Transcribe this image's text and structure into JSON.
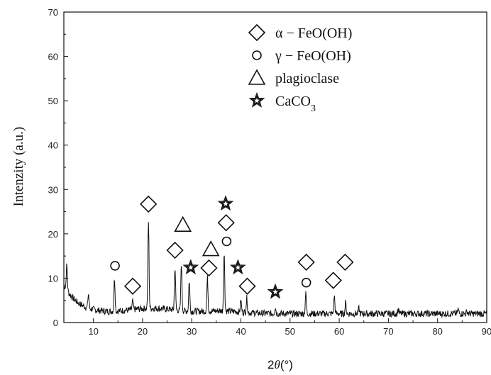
{
  "chart_data": {
    "type": "line",
    "ylabel": "Intenzity (a.u.)",
    "xlabel_theta": "θ",
    "xlabel_prefix": "2",
    "xlabel_unit": "(°)",
    "xlim": [
      4,
      90
    ],
    "ylim": [
      0,
      70
    ],
    "xticks": [
      10,
      20,
      30,
      40,
      50,
      60,
      70,
      80,
      90
    ],
    "yticks": [
      0,
      10,
      20,
      30,
      40,
      50,
      60,
      70
    ],
    "legend": {
      "placement": "top-right",
      "entries": [
        {
          "symbol": "diamond",
          "label": "α − FeO(OH)"
        },
        {
          "symbol": "circle",
          "label": "γ − FeO(OH)"
        },
        {
          "symbol": "triangle",
          "label": "plagioclase"
        },
        {
          "symbol": "star",
          "label": "CaCO",
          "sub": "3"
        }
      ]
    },
    "peaks": [
      {
        "x": 4.6,
        "y": 13
      },
      {
        "x": 9.0,
        "y": 6.5
      },
      {
        "x": 14.3,
        "y": 10
      },
      {
        "x": 18.0,
        "y": 4.8
      },
      {
        "x": 21.2,
        "y": 22.8
      },
      {
        "x": 26.6,
        "y": 12.5
      },
      {
        "x": 27.9,
        "y": 13.5
      },
      {
        "x": 29.5,
        "y": 9.5
      },
      {
        "x": 33.2,
        "y": 10
      },
      {
        "x": 36.6,
        "y": 15.5
      },
      {
        "x": 40.0,
        "y": 5
      },
      {
        "x": 41.2,
        "y": 5.5
      },
      {
        "x": 47.0,
        "y": 3.5
      },
      {
        "x": 53.2,
        "y": 6.5
      },
      {
        "x": 59.0,
        "y": 6
      },
      {
        "x": 61.3,
        "y": 4.5
      },
      {
        "x": 64.0,
        "y": 3.2
      },
      {
        "x": 72.0,
        "y": 3
      },
      {
        "x": 84.2,
        "y": 3
      },
      {
        "x": 86.0,
        "y": 2.6
      }
    ],
    "annotations": [
      {
        "symbol": "diamond",
        "x": 21.2,
        "y": 26.7
      },
      {
        "symbol": "diamond",
        "x": 18.0,
        "y": 8.2
      },
      {
        "symbol": "diamond",
        "x": 26.6,
        "y": 16.3
      },
      {
        "symbol": "diamond",
        "x": 33.5,
        "y": 12.3
      },
      {
        "symbol": "diamond",
        "x": 37.0,
        "y": 22.5
      },
      {
        "symbol": "diamond",
        "x": 41.3,
        "y": 8.2
      },
      {
        "symbol": "diamond",
        "x": 53.3,
        "y": 13.6
      },
      {
        "symbol": "diamond",
        "x": 58.8,
        "y": 9.5
      },
      {
        "symbol": "diamond",
        "x": 61.2,
        "y": 13.6
      },
      {
        "symbol": "circle",
        "x": 14.4,
        "y": 12.8
      },
      {
        "symbol": "circle",
        "x": 37.1,
        "y": 18.3
      },
      {
        "symbol": "circle",
        "x": 53.3,
        "y": 9.0
      },
      {
        "symbol": "triangle",
        "x": 28.2,
        "y": 22.0
      },
      {
        "symbol": "triangle",
        "x": 33.9,
        "y": 16.5
      },
      {
        "symbol": "star",
        "x": 29.8,
        "y": 12.4
      },
      {
        "symbol": "star",
        "x": 36.9,
        "y": 26.8
      },
      {
        "symbol": "star",
        "x": 39.4,
        "y": 12.4
      },
      {
        "symbol": "star",
        "x": 47.0,
        "y": 6.9
      }
    ]
  }
}
